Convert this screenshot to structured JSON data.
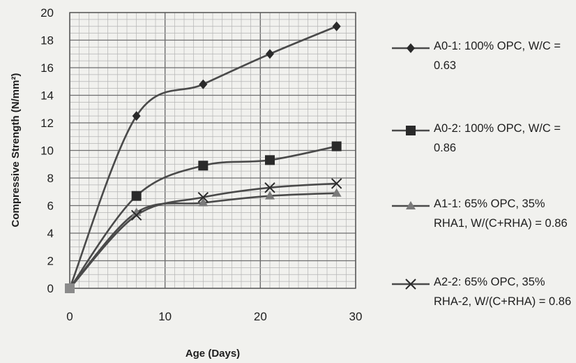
{
  "chart_data": {
    "type": "line",
    "xlabel": "Age (Days)",
    "ylabel": "Compressive Strength (N/mm²)",
    "xlim": [
      0,
      30
    ],
    "ylim": [
      0,
      20
    ],
    "x_ticks": [
      "0",
      "10",
      "20",
      "30"
    ],
    "y_ticks": [
      "0",
      "2",
      "4",
      "6",
      "8",
      "10",
      "12",
      "14",
      "16",
      "18",
      "20"
    ],
    "grid": "on",
    "legend_position": "right",
    "x": [
      0,
      7,
      14,
      21,
      28
    ],
    "series": [
      {
        "name": "A0-1: 100% OPC, W/C = 0.63",
        "marker": "diamond",
        "values": [
          0,
          12.5,
          14.8,
          17.0,
          19.0
        ]
      },
      {
        "name": "A0-2: 100% OPC, W/C = 0.86",
        "marker": "square",
        "values": [
          0,
          6.7,
          8.9,
          9.3,
          10.3
        ]
      },
      {
        "name": "A1-1: 65% OPC, 35% RHA1, W/(C+RHA) = 0.86",
        "marker": "triangle",
        "values": [
          0,
          5.5,
          6.2,
          6.7,
          6.9
        ]
      },
      {
        "name": "A2-2: 65% OPC, 35% RHA-2, W/(C+RHA) = 0.86",
        "marker": "x",
        "values": [
          0,
          5.3,
          6.6,
          7.3,
          7.6
        ]
      }
    ],
    "colors": {
      "line": "#4a4a4a",
      "grid_major": "#6e6e6e",
      "grid_minor": "#b4b4b4",
      "background": "#f1f1ee"
    }
  }
}
